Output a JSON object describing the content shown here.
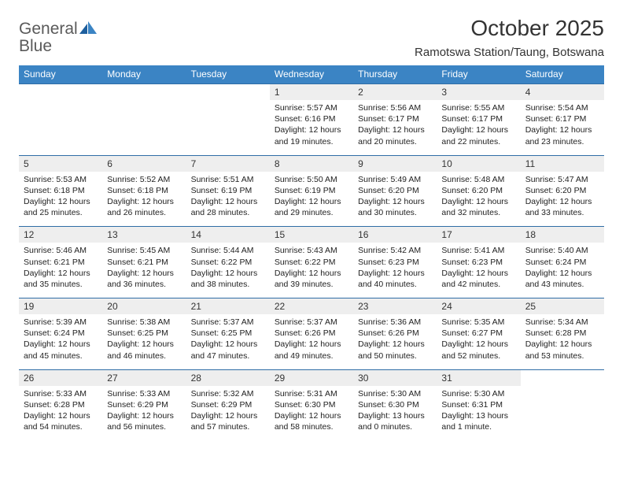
{
  "brand": {
    "word1": "General",
    "word2": "Blue"
  },
  "title": "October 2025",
  "location": "Ramotswa Station/Taung, Botswana",
  "colors": {
    "header_bg": "#3b84c4",
    "header_text": "#ffffff",
    "row_divider": "#2f6da6",
    "daynum_bg": "#eeeeee",
    "logo_gray": "#5a5a5a",
    "logo_blue": "#2b7bbf"
  },
  "day_headers": [
    "Sunday",
    "Monday",
    "Tuesday",
    "Wednesday",
    "Thursday",
    "Friday",
    "Saturday"
  ],
  "weeks": [
    [
      null,
      null,
      null,
      {
        "num": "1",
        "sunrise": "5:57 AM",
        "sunset": "6:16 PM",
        "daylight": "12 hours and 19 minutes."
      },
      {
        "num": "2",
        "sunrise": "5:56 AM",
        "sunset": "6:17 PM",
        "daylight": "12 hours and 20 minutes."
      },
      {
        "num": "3",
        "sunrise": "5:55 AM",
        "sunset": "6:17 PM",
        "daylight": "12 hours and 22 minutes."
      },
      {
        "num": "4",
        "sunrise": "5:54 AM",
        "sunset": "6:17 PM",
        "daylight": "12 hours and 23 minutes."
      }
    ],
    [
      {
        "num": "5",
        "sunrise": "5:53 AM",
        "sunset": "6:18 PM",
        "daylight": "12 hours and 25 minutes."
      },
      {
        "num": "6",
        "sunrise": "5:52 AM",
        "sunset": "6:18 PM",
        "daylight": "12 hours and 26 minutes."
      },
      {
        "num": "7",
        "sunrise": "5:51 AM",
        "sunset": "6:19 PM",
        "daylight": "12 hours and 28 minutes."
      },
      {
        "num": "8",
        "sunrise": "5:50 AM",
        "sunset": "6:19 PM",
        "daylight": "12 hours and 29 minutes."
      },
      {
        "num": "9",
        "sunrise": "5:49 AM",
        "sunset": "6:20 PM",
        "daylight": "12 hours and 30 minutes."
      },
      {
        "num": "10",
        "sunrise": "5:48 AM",
        "sunset": "6:20 PM",
        "daylight": "12 hours and 32 minutes."
      },
      {
        "num": "11",
        "sunrise": "5:47 AM",
        "sunset": "6:20 PM",
        "daylight": "12 hours and 33 minutes."
      }
    ],
    [
      {
        "num": "12",
        "sunrise": "5:46 AM",
        "sunset": "6:21 PM",
        "daylight": "12 hours and 35 minutes."
      },
      {
        "num": "13",
        "sunrise": "5:45 AM",
        "sunset": "6:21 PM",
        "daylight": "12 hours and 36 minutes."
      },
      {
        "num": "14",
        "sunrise": "5:44 AM",
        "sunset": "6:22 PM",
        "daylight": "12 hours and 38 minutes."
      },
      {
        "num": "15",
        "sunrise": "5:43 AM",
        "sunset": "6:22 PM",
        "daylight": "12 hours and 39 minutes."
      },
      {
        "num": "16",
        "sunrise": "5:42 AM",
        "sunset": "6:23 PM",
        "daylight": "12 hours and 40 minutes."
      },
      {
        "num": "17",
        "sunrise": "5:41 AM",
        "sunset": "6:23 PM",
        "daylight": "12 hours and 42 minutes."
      },
      {
        "num": "18",
        "sunrise": "5:40 AM",
        "sunset": "6:24 PM",
        "daylight": "12 hours and 43 minutes."
      }
    ],
    [
      {
        "num": "19",
        "sunrise": "5:39 AM",
        "sunset": "6:24 PM",
        "daylight": "12 hours and 45 minutes."
      },
      {
        "num": "20",
        "sunrise": "5:38 AM",
        "sunset": "6:25 PM",
        "daylight": "12 hours and 46 minutes."
      },
      {
        "num": "21",
        "sunrise": "5:37 AM",
        "sunset": "6:25 PM",
        "daylight": "12 hours and 47 minutes."
      },
      {
        "num": "22",
        "sunrise": "5:37 AM",
        "sunset": "6:26 PM",
        "daylight": "12 hours and 49 minutes."
      },
      {
        "num": "23",
        "sunrise": "5:36 AM",
        "sunset": "6:26 PM",
        "daylight": "12 hours and 50 minutes."
      },
      {
        "num": "24",
        "sunrise": "5:35 AM",
        "sunset": "6:27 PM",
        "daylight": "12 hours and 52 minutes."
      },
      {
        "num": "25",
        "sunrise": "5:34 AM",
        "sunset": "6:28 PM",
        "daylight": "12 hours and 53 minutes."
      }
    ],
    [
      {
        "num": "26",
        "sunrise": "5:33 AM",
        "sunset": "6:28 PM",
        "daylight": "12 hours and 54 minutes."
      },
      {
        "num": "27",
        "sunrise": "5:33 AM",
        "sunset": "6:29 PM",
        "daylight": "12 hours and 56 minutes."
      },
      {
        "num": "28",
        "sunrise": "5:32 AM",
        "sunset": "6:29 PM",
        "daylight": "12 hours and 57 minutes."
      },
      {
        "num": "29",
        "sunrise": "5:31 AM",
        "sunset": "6:30 PM",
        "daylight": "12 hours and 58 minutes."
      },
      {
        "num": "30",
        "sunrise": "5:30 AM",
        "sunset": "6:30 PM",
        "daylight": "13 hours and 0 minutes."
      },
      {
        "num": "31",
        "sunrise": "5:30 AM",
        "sunset": "6:31 PM",
        "daylight": "13 hours and 1 minute."
      },
      null
    ]
  ],
  "labels": {
    "sunrise": "Sunrise:",
    "sunset": "Sunset:",
    "daylight": "Daylight:"
  }
}
